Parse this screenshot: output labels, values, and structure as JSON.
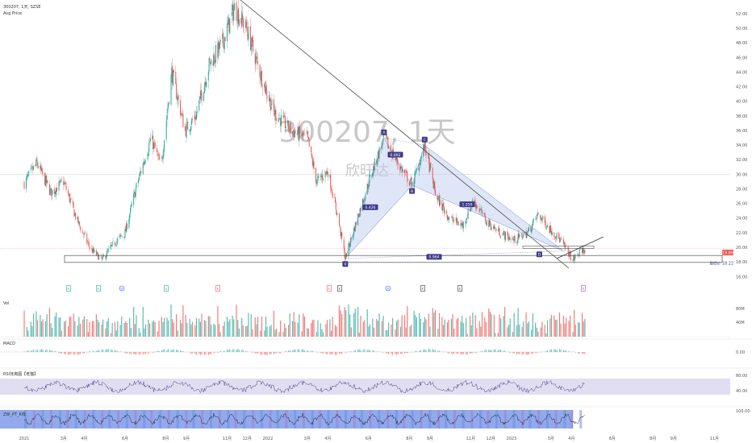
{
  "header": {
    "symbol_line": "300207, 1天, SZSE",
    "indicator": "Avg Price"
  },
  "watermark": {
    "symbol": "300207, 1天",
    "name": "欣旺达"
  },
  "panes": {
    "volume": "Vol",
    "macd": "MACD",
    "rsi": "RSI背离图【老猫】",
    "osc": "ZW_PT_K线"
  },
  "price_badges": {
    "last": "19.89",
    "avg": "18.22",
    "avg_tag": "最低价"
  },
  "harmonic": {
    "points": [
      "X",
      "A",
      "B",
      "C",
      "D"
    ],
    "ratios": [
      "0.892",
      "0.426",
      "1.259",
      "0.964"
    ]
  },
  "events": {
    "markers": [
      "E",
      "E",
      "D",
      "E",
      "E",
      "E",
      "E",
      "D",
      "E",
      "E",
      "E"
    ]
  },
  "colors": {
    "up": "#26a69a",
    "down": "#ef5350",
    "pattern_fill": "#b8c7ee",
    "pattern_line": "#7b8ec9",
    "label_bg": "#3f3a8c",
    "rsi_band": "#cfc8e8",
    "osc_fill": "#7f9be8",
    "last_price": "#ef5350"
  },
  "chart_data": [
    {
      "type": "candlestick",
      "title": "300207, 1天, SZSE",
      "x_ticks": [
        "2021",
        "3月",
        "4月",
        "6月",
        "8月",
        "9月",
        "11月",
        "12月",
        "2022",
        "3月",
        "4月",
        "6月",
        "8月",
        "9月",
        "11月",
        "12月",
        "2023",
        "3月",
        "4月",
        "6月",
        "8月",
        "9月",
        "11月"
      ],
      "y_ticks": [
        16.0,
        18.0,
        20.0,
        22.0,
        24.0,
        26.0,
        28.0,
        30.0,
        32.0,
        34.0,
        36.0,
        38.0,
        40.0,
        42.0,
        44.0,
        46.0,
        48.0,
        50.0,
        52.0
      ],
      "ylim": [
        15.5,
        53.0
      ],
      "path": [
        {
          "d": "2021-01-01",
          "v": 28.8
        },
        {
          "d": "2021-01-20",
          "v": 31.5
        },
        {
          "d": "2021-02-10",
          "v": 27.5
        },
        {
          "d": "2021-03-01",
          "v": 29.0
        },
        {
          "d": "2021-03-20",
          "v": 24.0
        },
        {
          "d": "2021-04-10",
          "v": 19.8
        },
        {
          "d": "2021-04-28",
          "v": 18.3
        },
        {
          "d": "2021-05-15",
          "v": 20.5
        },
        {
          "d": "2021-06-01",
          "v": 22.0
        },
        {
          "d": "2021-06-20",
          "v": 29.0
        },
        {
          "d": "2021-07-10",
          "v": 35.0
        },
        {
          "d": "2021-07-25",
          "v": 31.0
        },
        {
          "d": "2021-08-10",
          "v": 44.0
        },
        {
          "d": "2021-08-30",
          "v": 36.0
        },
        {
          "d": "2021-09-15",
          "v": 38.0
        },
        {
          "d": "2021-10-05",
          "v": 45.0
        },
        {
          "d": "2021-10-25",
          "v": 48.0
        },
        {
          "d": "2021-11-12",
          "v": 52.8
        },
        {
          "d": "2021-11-30",
          "v": 50.0
        },
        {
          "d": "2021-12-20",
          "v": 44.0
        },
        {
          "d": "2022-01-10",
          "v": 38.5
        },
        {
          "d": "2022-02-05",
          "v": 36.0
        },
        {
          "d": "2022-03-01",
          "v": 35.0
        },
        {
          "d": "2022-03-15",
          "v": 29.0
        },
        {
          "d": "2022-04-01",
          "v": 30.5
        },
        {
          "d": "2022-04-15",
          "v": 24.5
        },
        {
          "d": "2022-04-27",
          "v": 18.5
        },
        {
          "d": "2022-05-15",
          "v": 24.0
        },
        {
          "d": "2022-06-05",
          "v": 30.0
        },
        {
          "d": "2022-06-24",
          "v": 35.0
        },
        {
          "d": "2022-07-15",
          "v": 31.5
        },
        {
          "d": "2022-08-05",
          "v": 28.5
        },
        {
          "d": "2022-08-24",
          "v": 34.0
        },
        {
          "d": "2022-09-10",
          "v": 27.0
        },
        {
          "d": "2022-09-30",
          "v": 24.0
        },
        {
          "d": "2022-10-20",
          "v": 23.0
        },
        {
          "d": "2022-11-05",
          "v": 26.5
        },
        {
          "d": "2022-11-25",
          "v": 23.5
        },
        {
          "d": "2022-12-15",
          "v": 22.0
        },
        {
          "d": "2023-01-05",
          "v": 21.0
        },
        {
          "d": "2023-01-25",
          "v": 22.0
        },
        {
          "d": "2023-02-10",
          "v": 24.5
        },
        {
          "d": "2023-02-28",
          "v": 22.5
        },
        {
          "d": "2023-03-15",
          "v": 21.0
        },
        {
          "d": "2023-04-03",
          "v": 18.3
        },
        {
          "d": "2023-04-15",
          "v": 19.5
        },
        {
          "d": "2023-04-24",
          "v": 19.89
        }
      ],
      "harmonic_points": [
        {
          "label": "X",
          "d": "2022-04-27",
          "v": 18.5
        },
        {
          "label": "A",
          "d": "2022-06-24",
          "v": 35.0
        },
        {
          "label": "B",
          "d": "2022-08-05",
          "v": 28.5
        },
        {
          "label": "C",
          "d": "2022-08-24",
          "v": 34.0
        },
        {
          "label": "D",
          "d": "2023-03-20",
          "v": 19.5
        }
      ],
      "levels": [
        18.22,
        19.89
      ]
    },
    {
      "type": "bar",
      "title": "Vol",
      "y_ticks": [
        "40M",
        "80M"
      ]
    },
    {
      "type": "bar",
      "title": "MACD",
      "y_ticks": [
        0.0
      ]
    },
    {
      "type": "line",
      "title": "RSI背离图【老猫】",
      "y_ticks": [
        40.0,
        80.0
      ],
      "band": [
        40,
        80
      ]
    },
    {
      "type": "area",
      "title": "ZW_PT_K线",
      "y_ticks": [
        100.0
      ]
    }
  ]
}
